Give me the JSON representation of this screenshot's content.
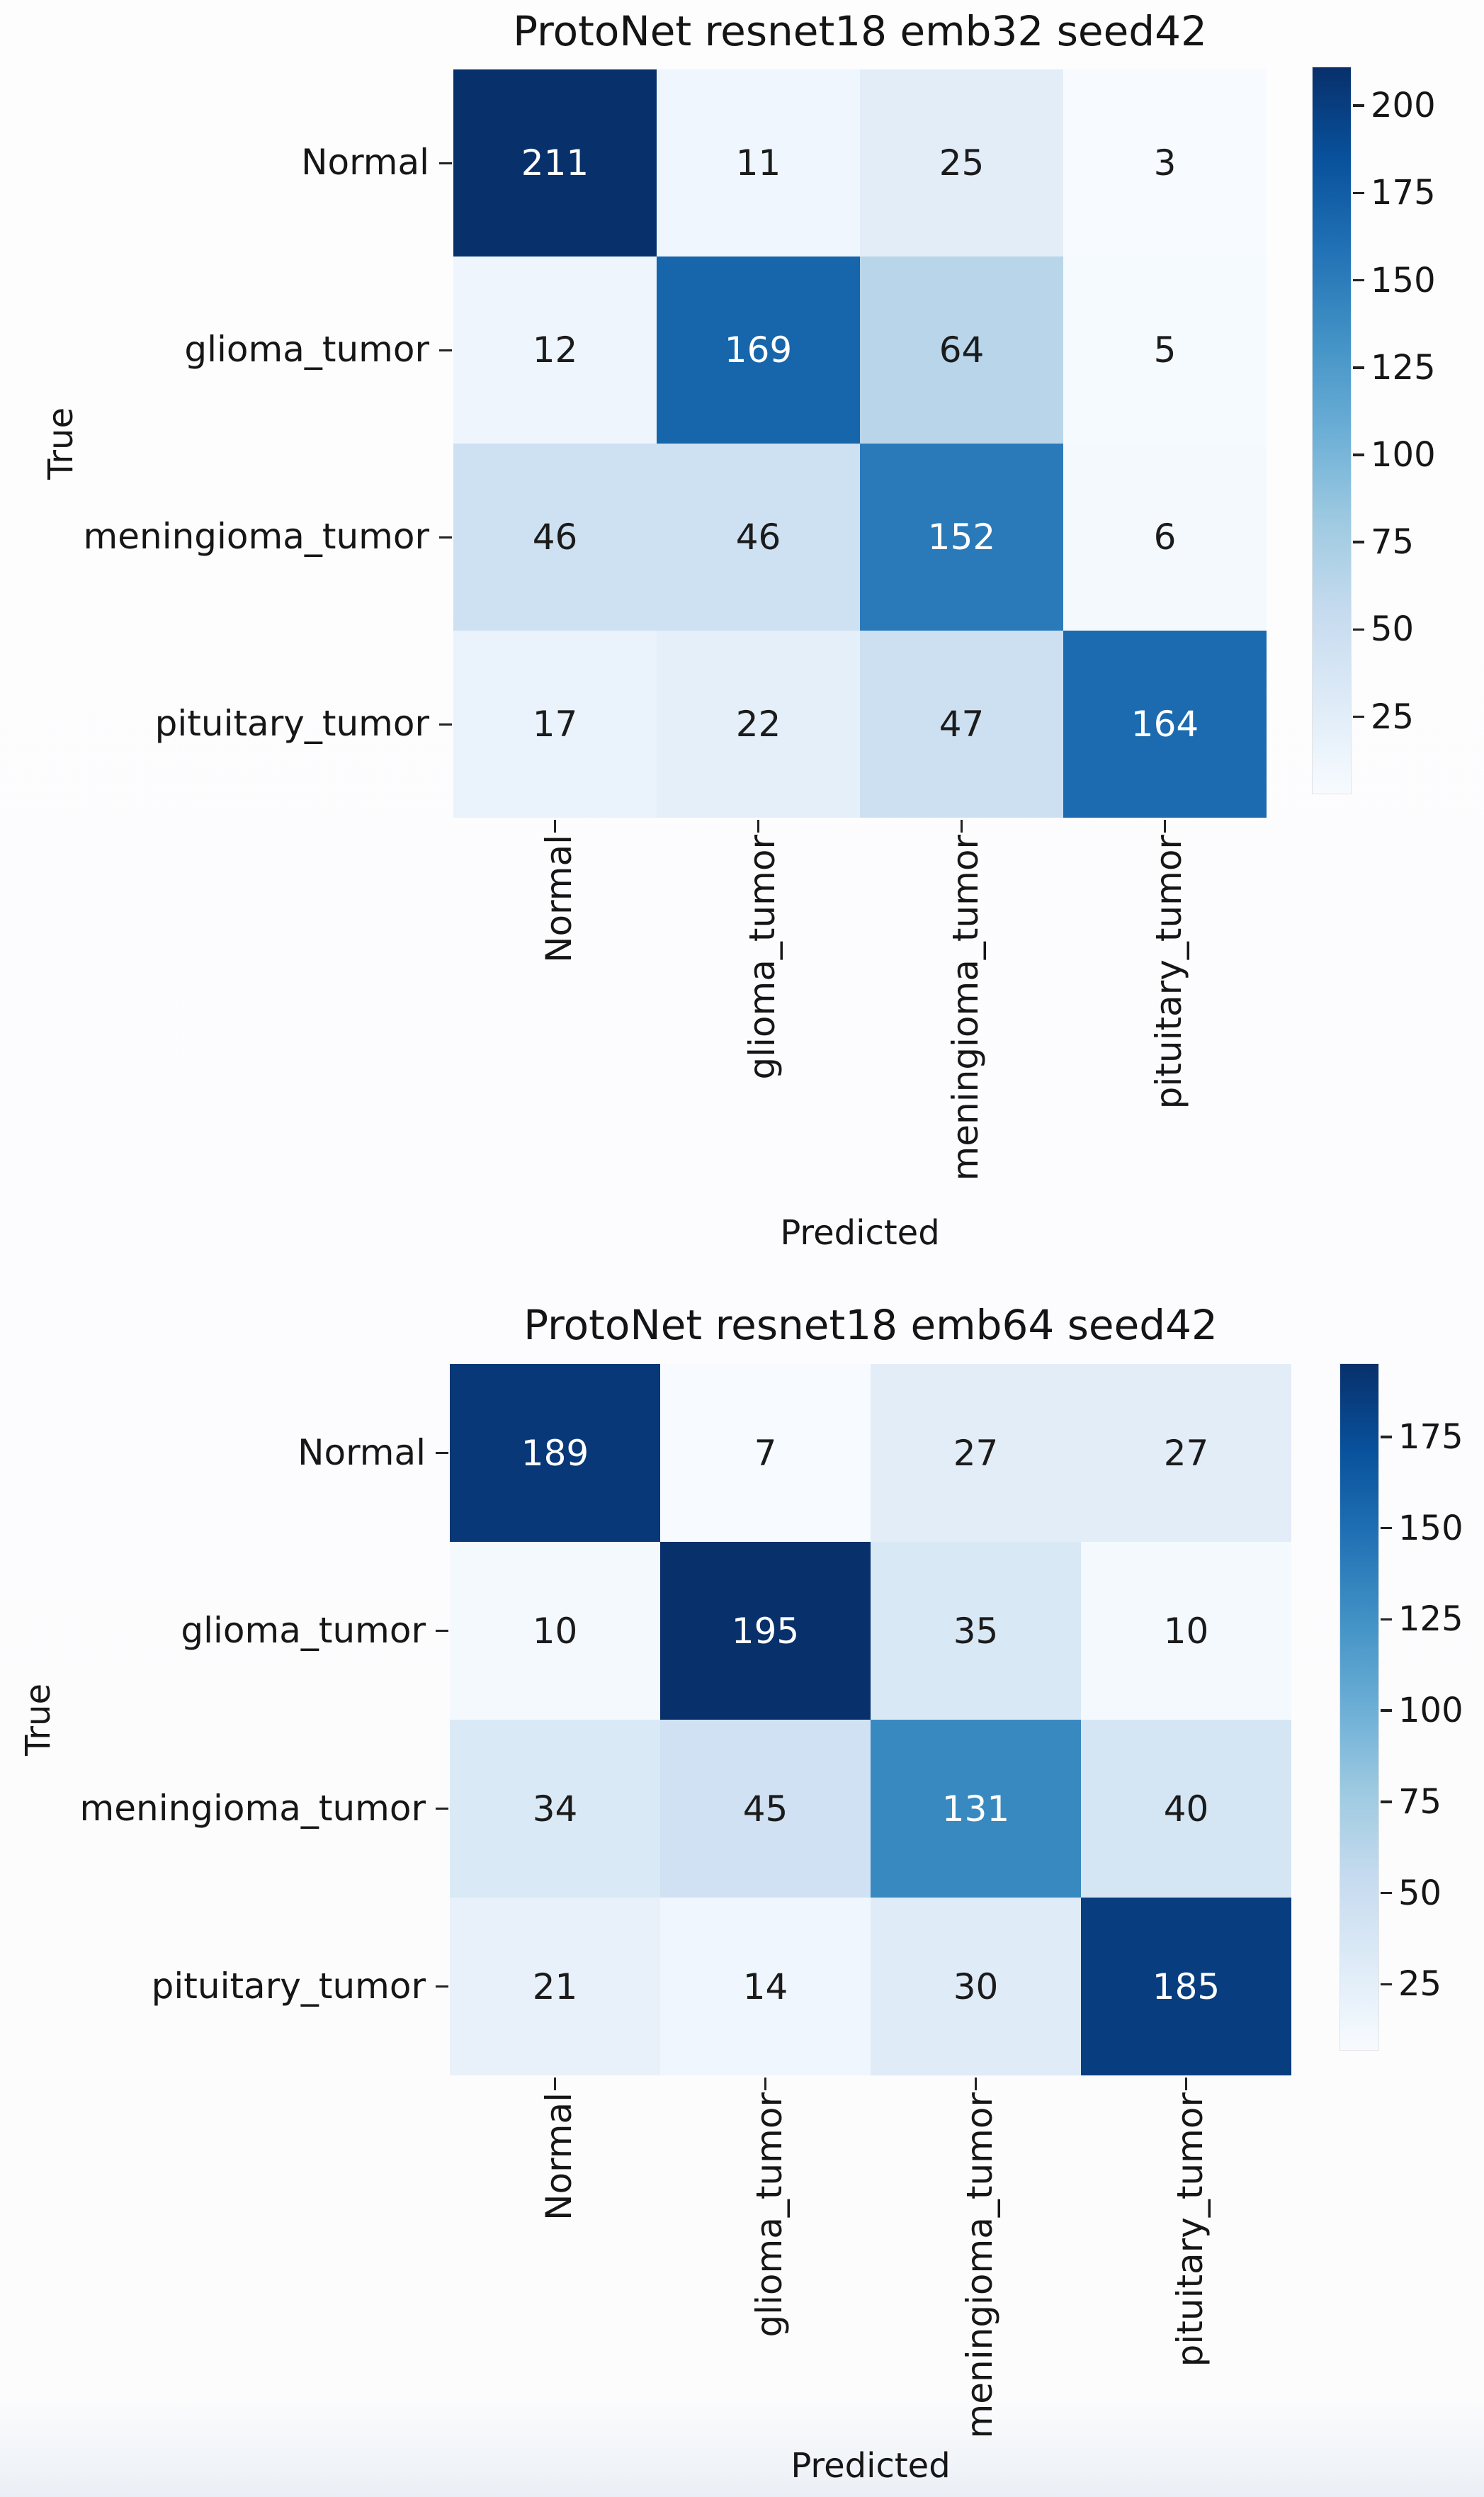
{
  "chart_data": [
    {
      "type": "heatmap",
      "title": "ProtoNet resnet18 emb32 seed42",
      "xlabel": "Predicted",
      "ylabel": "True",
      "x_categories": [
        "Normal",
        "glioma_tumor",
        "meningioma_tumor",
        "pituitary_tumor"
      ],
      "y_categories": [
        "Normal",
        "glioma_tumor",
        "meningioma_tumor",
        "pituitary_tumor"
      ],
      "values": [
        [
          211,
          11,
          25,
          3
        ],
        [
          12,
          169,
          64,
          5
        ],
        [
          46,
          46,
          152,
          6
        ],
        [
          17,
          22,
          47,
          164
        ]
      ],
      "colormap": "Blues",
      "vmin": 3,
      "vmax": 211,
      "colorbar_ticks": [
        200,
        175,
        150,
        125,
        100,
        75,
        50,
        25
      ],
      "annotations": true,
      "legend": "none",
      "grid": false
    },
    {
      "type": "heatmap",
      "title": "ProtoNet resnet18 emb64 seed42",
      "xlabel": "Predicted",
      "ylabel": "True",
      "x_categories": [
        "Normal",
        "glioma_tumor",
        "meningioma_tumor",
        "pituitary_tumor"
      ],
      "y_categories": [
        "Normal",
        "glioma_tumor",
        "meningioma_tumor",
        "pituitary_tumor"
      ],
      "values": [
        [
          189,
          7,
          27,
          27
        ],
        [
          10,
          195,
          35,
          10
        ],
        [
          34,
          45,
          131,
          40
        ],
        [
          21,
          14,
          30,
          185
        ]
      ],
      "colormap": "Blues",
      "vmin": 7,
      "vmax": 195,
      "colorbar_ticks": [
        175,
        150,
        125,
        100,
        75,
        50,
        25
      ],
      "annotations": true,
      "legend": "none",
      "grid": false
    }
  ],
  "colors": {
    "colormap_low": "#f7fbff",
    "colormap_high": "#08306b",
    "annotation_dark": "#1b1b1b",
    "annotation_light": "#ffffff",
    "axis_text": "#161616"
  }
}
